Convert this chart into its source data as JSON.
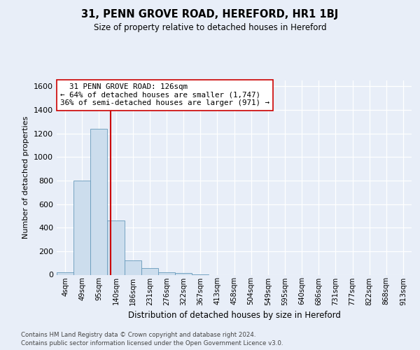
{
  "title": "31, PENN GROVE ROAD, HEREFORD, HR1 1BJ",
  "subtitle": "Size of property relative to detached houses in Hereford",
  "xlabel": "Distribution of detached houses by size in Hereford",
  "ylabel": "Number of detached properties",
  "bin_labels": [
    "4sqm",
    "49sqm",
    "95sqm",
    "140sqm",
    "186sqm",
    "231sqm",
    "276sqm",
    "322sqm",
    "367sqm",
    "413sqm",
    "458sqm",
    "504sqm",
    "549sqm",
    "595sqm",
    "640sqm",
    "686sqm",
    "731sqm",
    "777sqm",
    "822sqm",
    "868sqm",
    "913sqm"
  ],
  "bar_values": [
    20,
    800,
    1240,
    460,
    120,
    55,
    18,
    12,
    5,
    0,
    0,
    0,
    0,
    0,
    0,
    0,
    0,
    0,
    0,
    0,
    0
  ],
  "bar_color": "#ccdded",
  "bar_edgecolor": "#6699bb",
  "vline_x": 2.68,
  "vline_color": "#cc0000",
  "annotation_text": "  31 PENN GROVE ROAD: 126sqm\n← 64% of detached houses are smaller (1,747)\n36% of semi-detached houses are larger (971) →",
  "annotation_box_color": "white",
  "annotation_box_edgecolor": "#cc0000",
  "ylim": [
    0,
    1650
  ],
  "yticks": [
    0,
    200,
    400,
    600,
    800,
    1000,
    1200,
    1400,
    1600
  ],
  "footer": "Contains HM Land Registry data © Crown copyright and database right 2024.\nContains public sector information licensed under the Open Government Licence v3.0.",
  "bg_color": "#e8eef8",
  "plot_bg_color": "#e8eef8",
  "grid_color": "white"
}
